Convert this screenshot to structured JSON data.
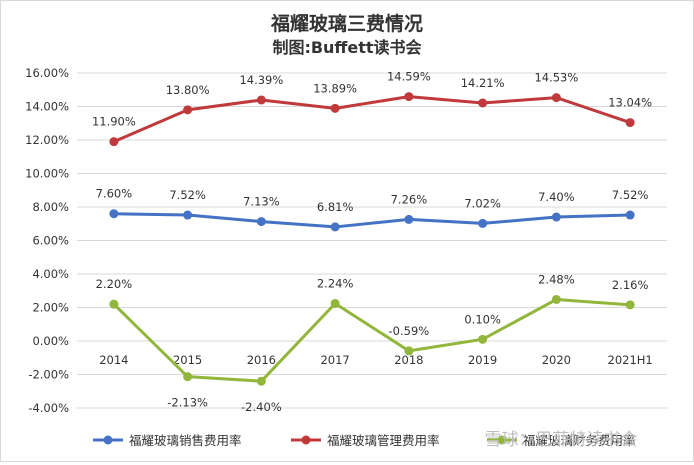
{
  "chart_data": {
    "type": "line",
    "title": "福耀玻璃三费情况",
    "subtitle": "制图:Buffett读书会",
    "categories": [
      "2014",
      "2015",
      "2016",
      "2017",
      "2018",
      "2019",
      "2020",
      "2021H1"
    ],
    "ylim": [
      -0.04,
      0.16
    ],
    "yticks": [
      "16.00%",
      "14.00%",
      "12.00%",
      "10.00%",
      "8.00%",
      "6.00%",
      "4.00%",
      "2.00%",
      "0.00%",
      "-2.00%",
      "-4.00%"
    ],
    "ytick_values": [
      0.16,
      0.14,
      0.12,
      0.1,
      0.08,
      0.06,
      0.04,
      0.02,
      0.0,
      -0.02,
      -0.04
    ],
    "grid": true,
    "legend_position": "bottom",
    "series": [
      {
        "name": "福耀玻璃销售费用率",
        "color": "#4472c4",
        "values": [
          0.076,
          0.0752,
          0.0713,
          0.0681,
          0.0726,
          0.0702,
          0.074,
          0.0752
        ],
        "labels": [
          "7.60%",
          "7.52%",
          "7.13%",
          "6.81%",
          "7.26%",
          "7.02%",
          "7.40%",
          "7.52%"
        ]
      },
      {
        "name": "福耀玻璃管理费用率",
        "color": "#c0393b",
        "values": [
          0.119,
          0.138,
          0.1439,
          0.1389,
          0.1459,
          0.1421,
          0.1453,
          0.1304
        ],
        "labels": [
          "11.90%",
          "13.80%",
          "14.39%",
          "13.89%",
          "14.59%",
          "14.21%",
          "14.53%",
          "13.04%"
        ]
      },
      {
        "name": "福耀玻璃财务费用率",
        "color": "#92b63c",
        "values": [
          0.022,
          -0.0213,
          -0.024,
          0.0224,
          -0.0059,
          0.001,
          0.0248,
          0.0216
        ],
        "labels": [
          "2.20%",
          "-2.13%",
          "-2.40%",
          "2.24%",
          "-0.59%",
          "0.10%",
          "2.48%",
          "2.16%"
        ]
      }
    ]
  },
  "watermark": "雪球：巴菲特读书会"
}
